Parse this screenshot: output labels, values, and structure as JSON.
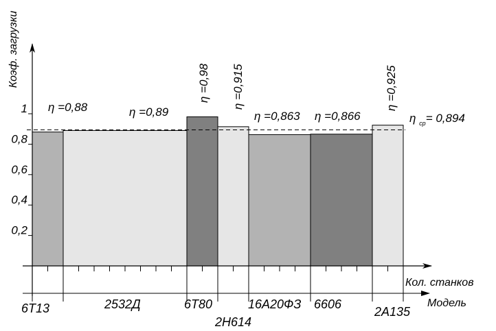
{
  "chart_data": {
    "type": "bar",
    "ylabel": "Коэф. загрузки",
    "xlabel_count": "Кол. станков",
    "xlabel_model": "Модель",
    "ylim": [
      0,
      1
    ],
    "yticks": [
      "0,2",
      "0,4",
      "0,6",
      "0,8",
      "1"
    ],
    "yticks_values": [
      0.2,
      0.4,
      0.6,
      0.8,
      1.0
    ],
    "categories": [
      "6Т13",
      "2532Д",
      "6Т80",
      "2Н614",
      "16А20ФЗ",
      "6606",
      "2А135"
    ],
    "machine_counts": [
      1,
      4,
      1,
      1,
      2,
      2,
      1
    ],
    "values": [
      0.88,
      0.89,
      0.98,
      0.915,
      0.863,
      0.866,
      0.925
    ],
    "eta_labels": [
      "0,88",
      "0,89",
      "0,98",
      "0,915",
      "0,863",
      "0,866",
      "0,925"
    ],
    "fill_colors": [
      "#b3b3b3",
      "#e6e6e6",
      "#808080",
      "#e6e6e6",
      "#b3b3b3",
      "#808080",
      "#e6e6e6"
    ],
    "eta_symbol": "η",
    "average": {
      "value": 0.894,
      "symbol": "η",
      "subscript": "ср",
      "label": "= 0,894"
    },
    "eta_prefix": "="
  }
}
